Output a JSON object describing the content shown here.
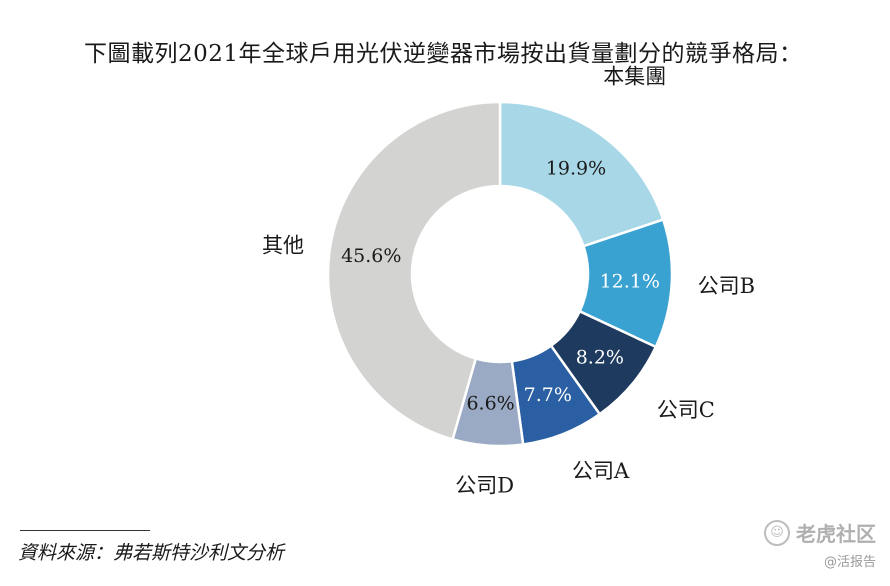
{
  "title": "下圖載列2021年全球戶用光伏逆變器市場按出貨量劃分的競爭格局：",
  "chart_data": {
    "type": "pie",
    "donut": true,
    "slices": [
      {
        "label": "本集團",
        "value": 19.9,
        "value_label": "19.9%",
        "color": "#a8d8e8",
        "text_color": "#1a1a1a"
      },
      {
        "label": "公司B",
        "value": 12.1,
        "value_label": "12.1%",
        "color": "#3aa2d0",
        "text_color": "#ffffff"
      },
      {
        "label": "公司C",
        "value": 8.2,
        "value_label": "8.2%",
        "color": "#1e3a5f",
        "text_color": "#ffffff"
      },
      {
        "label": "公司A",
        "value": 7.7,
        "value_label": "7.7%",
        "color": "#2a5fa3",
        "text_color": "#ffffff"
      },
      {
        "label": "公司D",
        "value": 6.6,
        "value_label": "6.6%",
        "color": "#9aaac4",
        "text_color": "#1a1a1a"
      },
      {
        "label": "其他",
        "value": 45.6,
        "value_label": "45.6%",
        "color": "#d3d3d1",
        "text_color": "#1a1a1a"
      }
    ]
  },
  "source": "資料來源：弗若斯特沙利文分析",
  "watermark": {
    "main": "老虎社区",
    "sub": "@活报告",
    "logo": "☺"
  }
}
